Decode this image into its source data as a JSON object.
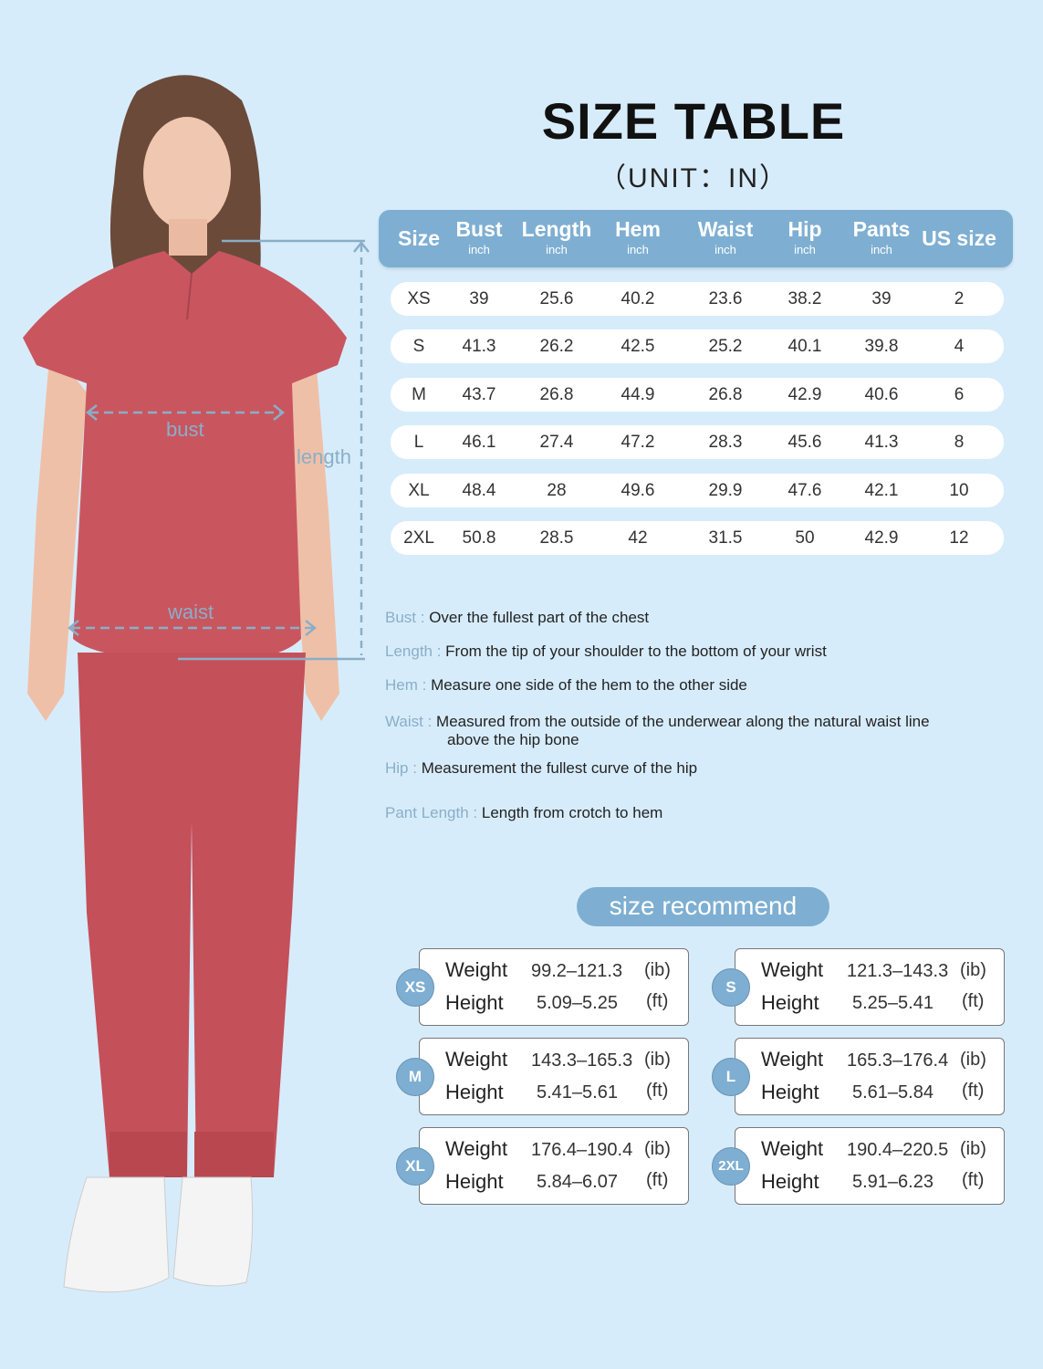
{
  "title": "SIZE TABLE",
  "unit": "（UNIT：IN）",
  "colors": {
    "background": "#d7ecfb",
    "accent": "#7eafd2",
    "garment": "#c9565f"
  },
  "table": {
    "headers": [
      {
        "label": "Size",
        "sub": ""
      },
      {
        "label": "Bust",
        "sub": "inch"
      },
      {
        "label": "Length",
        "sub": "inch"
      },
      {
        "label": "Hem",
        "sub": "inch"
      },
      {
        "label": "Waist",
        "sub": "inch"
      },
      {
        "label": "Hip",
        "sub": "inch"
      },
      {
        "label": "Pants",
        "sub": "inch"
      },
      {
        "label": "US size",
        "sub": ""
      }
    ],
    "rows": [
      [
        "XS",
        "39",
        "25.6",
        "40.2",
        "23.6",
        "38.2",
        "39",
        "2"
      ],
      [
        "S",
        "41.3",
        "26.2",
        "42.5",
        "25.2",
        "40.1",
        "39.8",
        "4"
      ],
      [
        "M",
        "43.7",
        "26.8",
        "44.9",
        "26.8",
        "42.9",
        "40.6",
        "6"
      ],
      [
        "L",
        "46.1",
        "27.4",
        "47.2",
        "28.3",
        "45.6",
        "41.3",
        "8"
      ],
      [
        "XL",
        "48.4",
        "28",
        "49.6",
        "29.9",
        "47.6",
        "42.1",
        "10"
      ],
      [
        "2XL",
        "50.8",
        "28.5",
        "42",
        "31.5",
        "50",
        "42.9",
        "12"
      ]
    ]
  },
  "figure_labels": {
    "bust": "bust",
    "waist": "waist",
    "length": "length"
  },
  "definitions": [
    {
      "key": "Bust : ",
      "text": "Over the fullest part of the chest"
    },
    {
      "key": "Length : ",
      "text": "From the tip of your shoulder to the bottom of your wrist"
    },
    {
      "key": "Hem : ",
      "text": "Measure one side of the hem to the other side"
    },
    {
      "key": "Waist : ",
      "text": "Measured from the outside of the underwear along the natural waist line",
      "text2": "above the hip bone"
    },
    {
      "key": "Hip : ",
      "text": "Measurement the fullest curve of the hip"
    },
    {
      "key": "Pant Length : ",
      "text": "Length from crotch to hem"
    }
  ],
  "recommend": {
    "title": "size recommend",
    "weight_label": "Weight",
    "height_label": "Height",
    "weight_unit": "(ib)",
    "height_unit": "(ft)",
    "cards": [
      {
        "size": "XS",
        "weight": "99.2–121.3",
        "height": "5.09–5.25"
      },
      {
        "size": "S",
        "weight": "121.3–143.3",
        "height": "5.25–5.41"
      },
      {
        "size": "M",
        "weight": "143.3–165.3",
        "height": "5.41–5.61"
      },
      {
        "size": "L",
        "weight": "165.3–176.4",
        "height": "5.61–5.84"
      },
      {
        "size": "XL",
        "weight": "176.4–190.4",
        "height": "5.84–6.07"
      },
      {
        "size": "2XL",
        "weight": "190.4–220.5",
        "height": "5.91–6.23"
      }
    ]
  }
}
